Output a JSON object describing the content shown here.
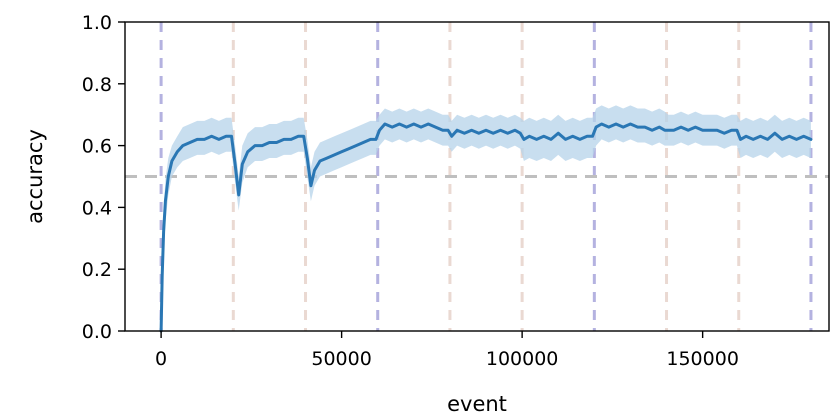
{
  "chart_data": {
    "type": "line",
    "xlabel": "event",
    "ylabel": "accuracy",
    "xlim": [
      -10000,
      185000
    ],
    "ylim": [
      0.0,
      1.0
    ],
    "xticks": [
      0,
      50000,
      100000,
      150000
    ],
    "xtick_labels": [
      "0",
      "50000",
      "100000",
      "150000"
    ],
    "yticks": [
      0.0,
      0.2,
      0.4,
      0.6,
      0.8,
      1.0
    ],
    "ytick_labels": [
      "0.0",
      "0.2",
      "0.4",
      "0.6",
      "0.8",
      "1.0"
    ],
    "grid": false,
    "legend": "none",
    "reference_line": {
      "y": 0.5,
      "style": "dashed",
      "color": "#bfbfbf"
    },
    "vlines_major": {
      "x": [
        0,
        60000,
        120000,
        180000
      ],
      "color": "#b4b2e0"
    },
    "vlines_minor": {
      "x": [
        20000,
        40000,
        80000,
        100000,
        140000,
        160000
      ],
      "color": "#ead9d2"
    },
    "colors": {
      "line": "#2a77b4",
      "band": "#b5d3ea"
    },
    "series": [
      {
        "x": [
          0,
          300,
          700,
          1200,
          2000,
          3000,
          4500,
          6000,
          8000,
          10000,
          12000,
          14000,
          16000,
          18000,
          19500,
          20500,
          21500,
          22500,
          24000,
          26000,
          28000,
          30000,
          32000,
          34000,
          36000,
          38000,
          39500,
          40500,
          41500,
          42500,
          44000,
          46000,
          48000,
          50000,
          52000,
          54000,
          56000,
          58000,
          59500,
          60500,
          62000,
          64000,
          66000,
          68000,
          70000,
          72000,
          74000,
          76000,
          78000,
          79500,
          80500,
          82000,
          84000,
          86000,
          88000,
          90000,
          92000,
          94000,
          96000,
          98000,
          99500,
          100500,
          102000,
          104000,
          106000,
          108000,
          110000,
          112000,
          114000,
          116000,
          118000,
          119500,
          120500,
          122000,
          124000,
          126000,
          128000,
          130000,
          132000,
          134000,
          136000,
          138000,
          139500,
          140500,
          142000,
          144000,
          146000,
          148000,
          150000,
          152000,
          154000,
          156000,
          158000,
          159500,
          160500,
          162000,
          164000,
          166000,
          168000,
          170000,
          172000,
          174000,
          176000,
          178000,
          180000
        ],
        "y": [
          0.0,
          0.18,
          0.32,
          0.42,
          0.5,
          0.55,
          0.58,
          0.6,
          0.61,
          0.62,
          0.62,
          0.63,
          0.62,
          0.63,
          0.63,
          0.54,
          0.44,
          0.54,
          0.58,
          0.6,
          0.6,
          0.61,
          0.61,
          0.62,
          0.62,
          0.63,
          0.63,
          0.56,
          0.47,
          0.52,
          0.55,
          0.56,
          0.57,
          0.58,
          0.59,
          0.6,
          0.61,
          0.62,
          0.62,
          0.65,
          0.67,
          0.66,
          0.67,
          0.66,
          0.67,
          0.66,
          0.67,
          0.66,
          0.65,
          0.65,
          0.63,
          0.65,
          0.64,
          0.65,
          0.64,
          0.65,
          0.64,
          0.65,
          0.64,
          0.65,
          0.64,
          0.62,
          0.63,
          0.62,
          0.63,
          0.62,
          0.64,
          0.62,
          0.63,
          0.62,
          0.63,
          0.63,
          0.66,
          0.67,
          0.66,
          0.67,
          0.66,
          0.67,
          0.66,
          0.66,
          0.65,
          0.66,
          0.65,
          0.65,
          0.65,
          0.66,
          0.65,
          0.66,
          0.65,
          0.65,
          0.65,
          0.64,
          0.65,
          0.65,
          0.62,
          0.63,
          0.62,
          0.63,
          0.62,
          0.64,
          0.62,
          0.63,
          0.62,
          0.63,
          0.62
        ],
        "y_lower": [
          0.0,
          0.12,
          0.25,
          0.35,
          0.44,
          0.5,
          0.53,
          0.55,
          0.56,
          0.57,
          0.57,
          0.58,
          0.57,
          0.58,
          0.58,
          0.48,
          0.39,
          0.48,
          0.53,
          0.55,
          0.55,
          0.56,
          0.56,
          0.57,
          0.57,
          0.58,
          0.58,
          0.5,
          0.42,
          0.47,
          0.5,
          0.51,
          0.52,
          0.53,
          0.54,
          0.55,
          0.56,
          0.57,
          0.57,
          0.6,
          0.62,
          0.61,
          0.62,
          0.61,
          0.62,
          0.61,
          0.62,
          0.61,
          0.6,
          0.6,
          0.58,
          0.6,
          0.59,
          0.6,
          0.59,
          0.6,
          0.59,
          0.6,
          0.59,
          0.6,
          0.59,
          0.55,
          0.56,
          0.55,
          0.56,
          0.55,
          0.57,
          0.55,
          0.56,
          0.55,
          0.56,
          0.56,
          0.6,
          0.62,
          0.61,
          0.62,
          0.61,
          0.62,
          0.61,
          0.61,
          0.6,
          0.61,
          0.6,
          0.6,
          0.6,
          0.61,
          0.6,
          0.61,
          0.6,
          0.6,
          0.6,
          0.59,
          0.6,
          0.6,
          0.56,
          0.57,
          0.56,
          0.57,
          0.56,
          0.58,
          0.56,
          0.57,
          0.56,
          0.57,
          0.56
        ],
        "y_upper": [
          0.0,
          0.24,
          0.39,
          0.49,
          0.56,
          0.6,
          0.63,
          0.66,
          0.67,
          0.68,
          0.68,
          0.69,
          0.68,
          0.69,
          0.69,
          0.6,
          0.5,
          0.6,
          0.64,
          0.66,
          0.66,
          0.67,
          0.67,
          0.68,
          0.68,
          0.69,
          0.69,
          0.62,
          0.53,
          0.58,
          0.61,
          0.62,
          0.63,
          0.64,
          0.65,
          0.66,
          0.67,
          0.68,
          0.68,
          0.7,
          0.72,
          0.71,
          0.72,
          0.71,
          0.72,
          0.71,
          0.72,
          0.71,
          0.7,
          0.7,
          0.68,
          0.7,
          0.69,
          0.7,
          0.69,
          0.7,
          0.69,
          0.7,
          0.69,
          0.7,
          0.69,
          0.68,
          0.69,
          0.68,
          0.69,
          0.68,
          0.7,
          0.68,
          0.69,
          0.68,
          0.69,
          0.69,
          0.72,
          0.73,
          0.72,
          0.73,
          0.72,
          0.73,
          0.72,
          0.72,
          0.71,
          0.72,
          0.71,
          0.7,
          0.7,
          0.71,
          0.7,
          0.71,
          0.7,
          0.7,
          0.7,
          0.69,
          0.7,
          0.7,
          0.68,
          0.69,
          0.68,
          0.69,
          0.68,
          0.7,
          0.68,
          0.69,
          0.68,
          0.69,
          0.68
        ]
      }
    ]
  }
}
